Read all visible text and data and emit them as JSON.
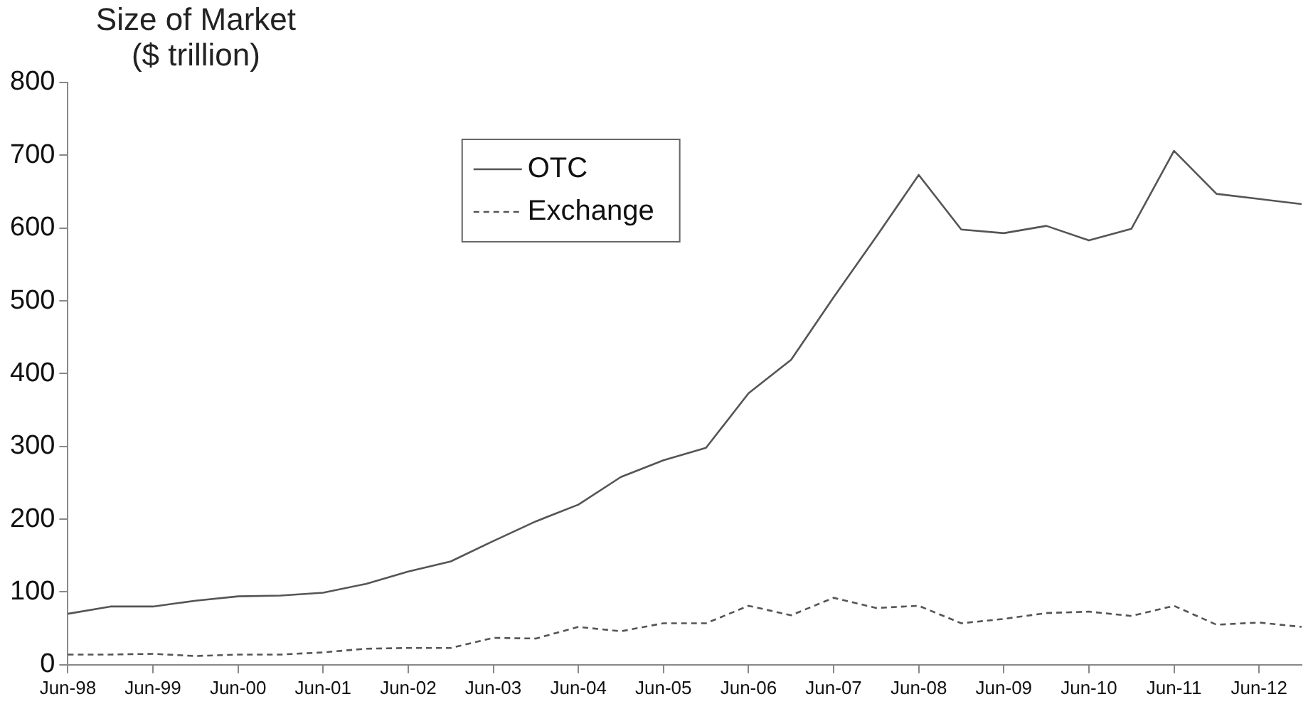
{
  "chart_data": {
    "type": "line",
    "ylabel": "Size of Market ($ trillion)",
    "categories": [
      "Jun-98",
      null,
      "Jun-99",
      null,
      "Jun-00",
      null,
      "Jun-01",
      null,
      "Jun-02",
      null,
      "Jun-03",
      null,
      "Jun-04",
      null,
      "Jun-05",
      null,
      "Jun-06",
      null,
      "Jun-07",
      null,
      "Jun-08",
      null,
      "Jun-09",
      null,
      "Jun-10",
      null,
      "Jun-11",
      null,
      "Jun-12",
      null
    ],
    "series": [
      {
        "name": "OTC",
        "color": "#555555",
        "line_style": "solid",
        "values": [
          70,
          80,
          80,
          88,
          94,
          95,
          99,
          111,
          128,
          142,
          170,
          197,
          220,
          258,
          281,
          298,
          373,
          419,
          505,
          588,
          673,
          598,
          593,
          603,
          583,
          599,
          706,
          647,
          640,
          633
        ]
      },
      {
        "name": "Exchange",
        "color": "#555555",
        "line_style": "dashed",
        "values": [
          14,
          14,
          15,
          12,
          14,
          14,
          17,
          22,
          23,
          23,
          37,
          36,
          52,
          46,
          57,
          57,
          81,
          68,
          92,
          78,
          81,
          57,
          63,
          71,
          73,
          67,
          81,
          55,
          58,
          52
        ]
      }
    ],
    "ylim": [
      0,
      800
    ],
    "yticks": [
      0,
      100,
      200,
      300,
      400,
      500,
      600,
      700,
      800
    ],
    "grid": false,
    "legend": "top center",
    "marker": "none"
  }
}
